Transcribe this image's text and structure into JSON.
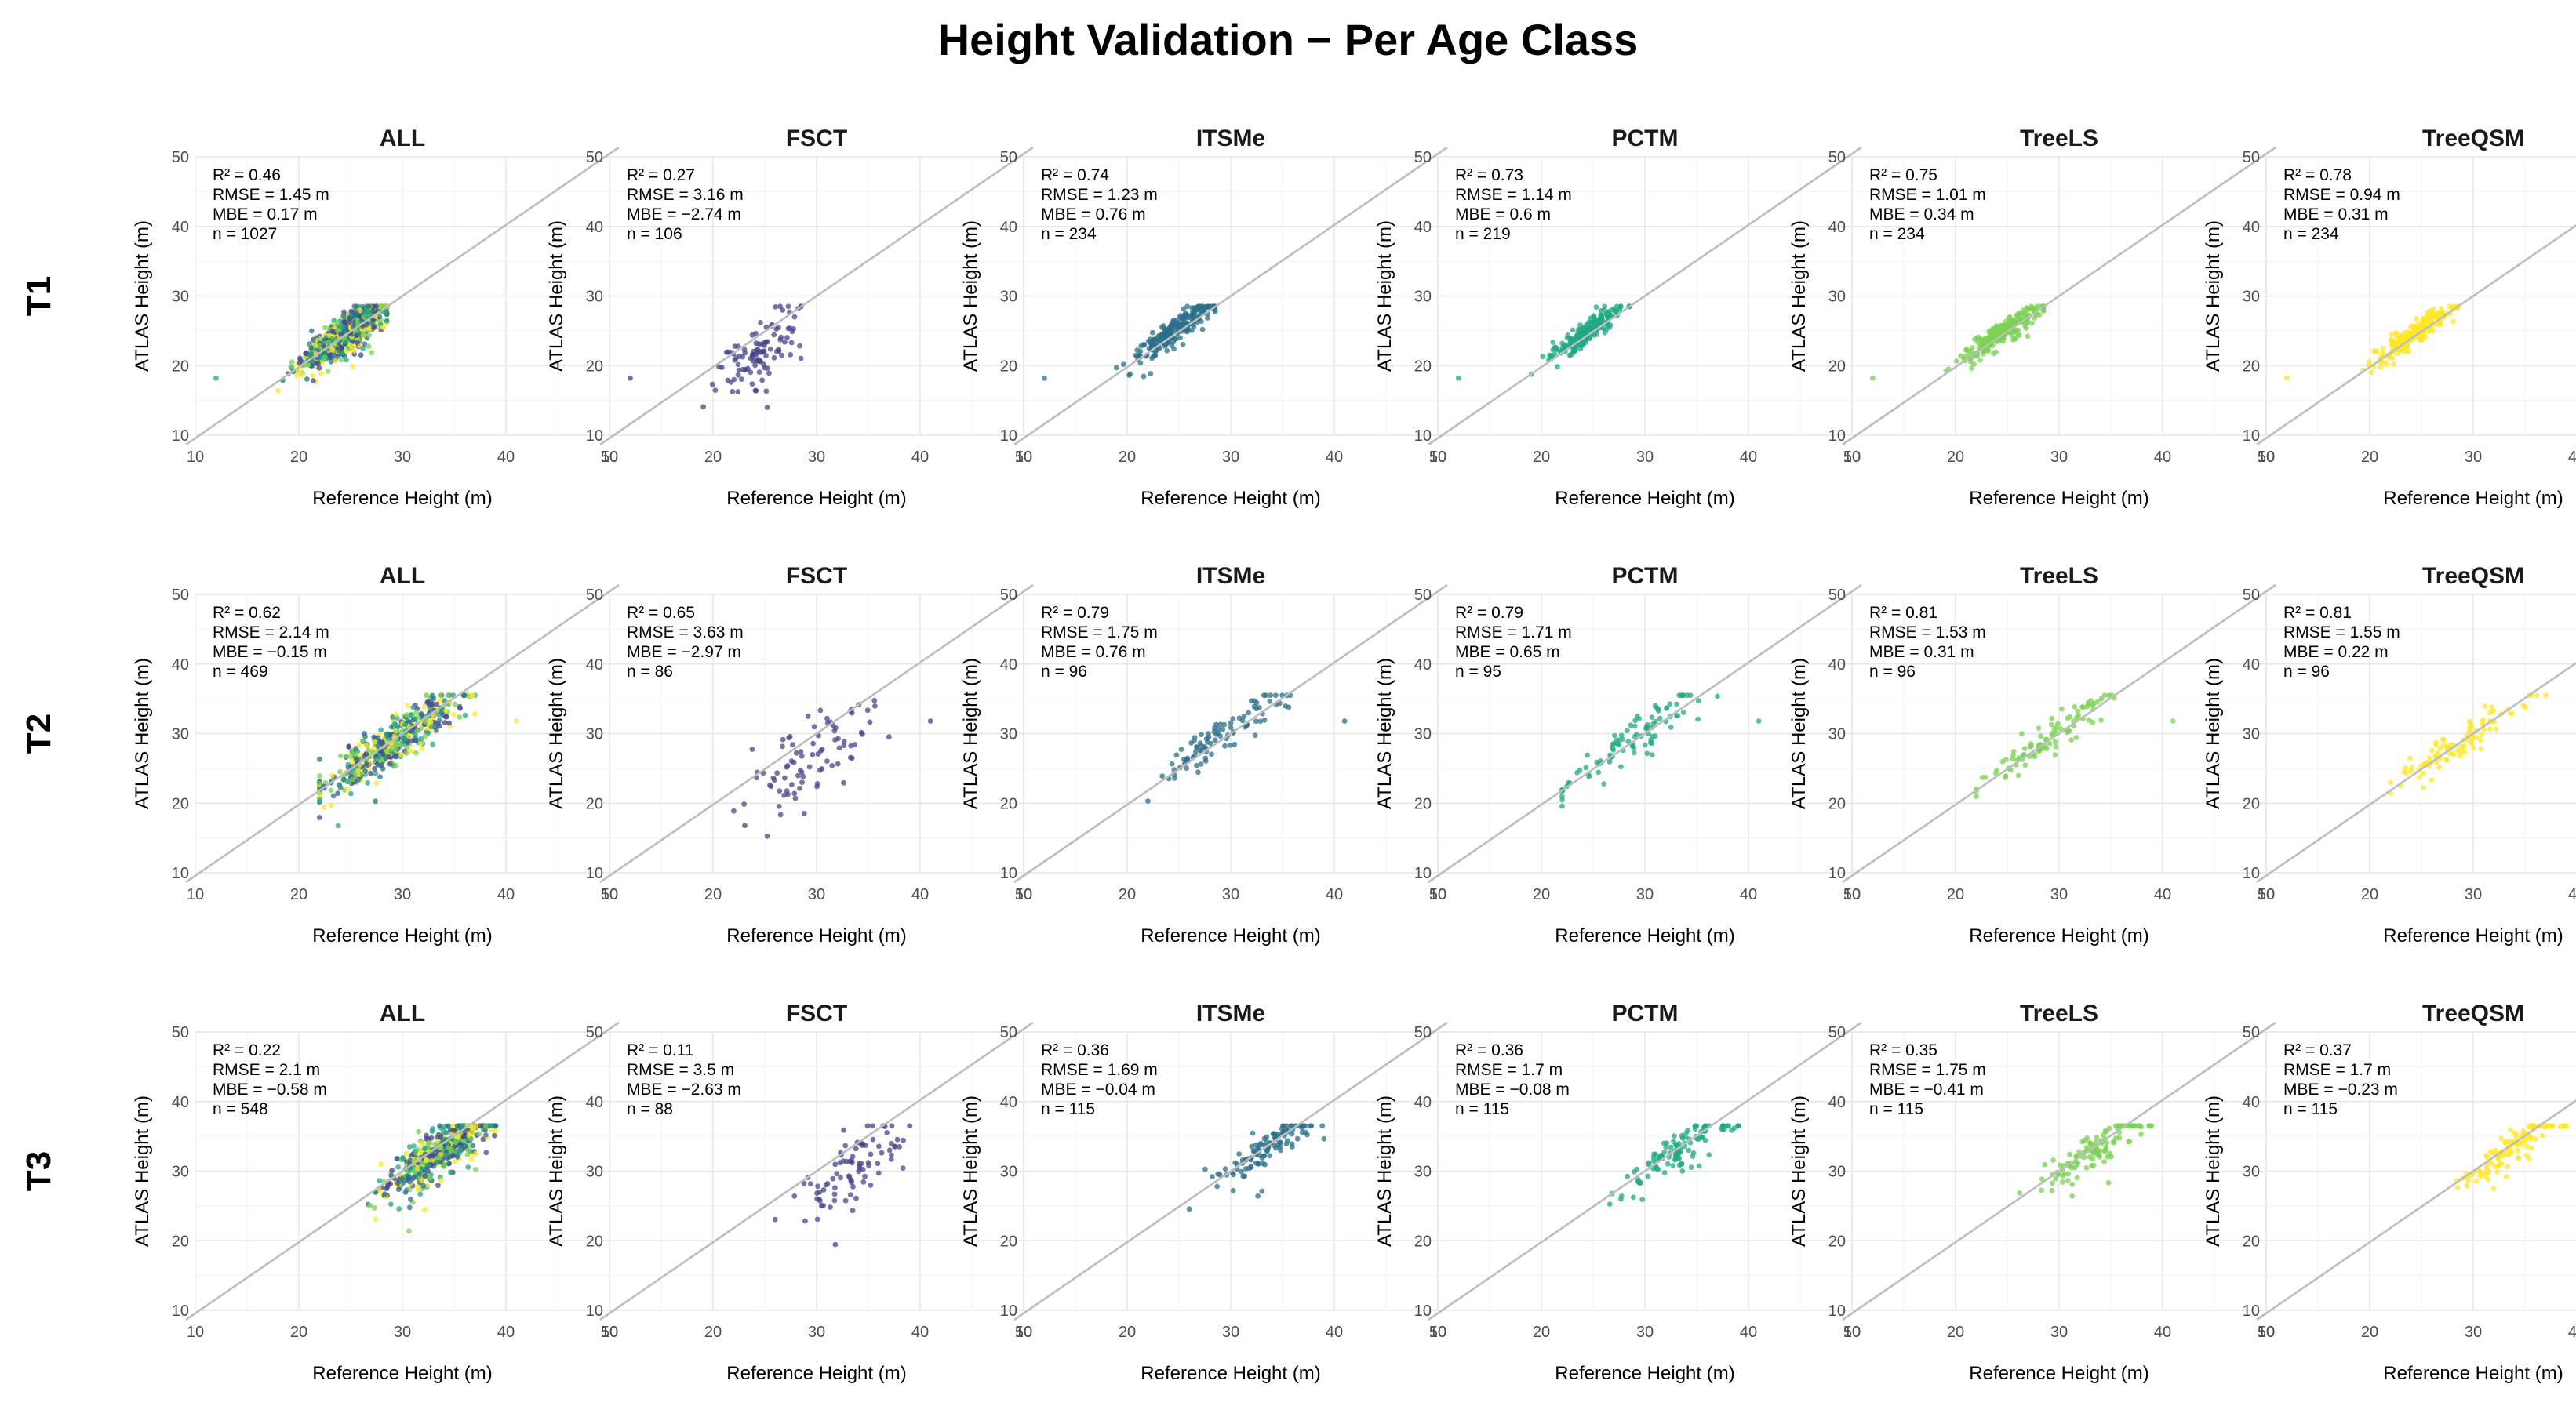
{
  "figure": {
    "title": "Height Validation − Per Age Class",
    "row_labels": [
      "T1",
      "T2",
      "T3"
    ],
    "xlabel": "Reference Height (m)",
    "ylabel": "ATLAS Height (m)",
    "xlim": [
      10,
      50
    ],
    "ylim": [
      10,
      50
    ],
    "ticks": [
      10,
      20,
      30,
      40,
      50
    ],
    "grid": true,
    "reference_line": "1:1",
    "line_color": "#bdbdbd",
    "grid_color": "#ececec"
  },
  "method_colors": {
    "FSCT": "#46468c",
    "ITSMe": "#2c6f8a",
    "PCTM": "#22a884",
    "TreeLS": "#7ad151",
    "TreeQSM": "#fde725"
  },
  "stat_labels": {
    "r2": "R² = ",
    "rmse": "RMSE = ",
    "mbe": "MBE = ",
    "n": "n = "
  },
  "chart_data": [
    {
      "type": "scatter",
      "row": "T1",
      "method": "ALL",
      "stats": {
        "r2": "0.46",
        "rmse": "1.45 m",
        "mbe": "0.17 m",
        "n": "1027"
      }
    },
    {
      "type": "scatter",
      "row": "T1",
      "method": "FSCT",
      "stats": {
        "r2": "0.27",
        "rmse": "3.16 m",
        "mbe": "−2.74 m",
        "n": "106"
      }
    },
    {
      "type": "scatter",
      "row": "T1",
      "method": "ITSMe",
      "stats": {
        "r2": "0.74",
        "rmse": "1.23 m",
        "mbe": "0.76 m",
        "n": "234"
      }
    },
    {
      "type": "scatter",
      "row": "T1",
      "method": "PCTM",
      "stats": {
        "r2": "0.73",
        "rmse": "1.14 m",
        "mbe": "0.6 m",
        "n": "219"
      }
    },
    {
      "type": "scatter",
      "row": "T1",
      "method": "TreeLS",
      "stats": {
        "r2": "0.75",
        "rmse": "1.01 m",
        "mbe": "0.34 m",
        "n": "234"
      }
    },
    {
      "type": "scatter",
      "row": "T1",
      "method": "TreeQSM",
      "stats": {
        "r2": "0.78",
        "rmse": "0.94 m",
        "mbe": "0.31 m",
        "n": "234"
      }
    },
    {
      "type": "scatter",
      "row": "T2",
      "method": "ALL",
      "stats": {
        "r2": "0.62",
        "rmse": "2.14 m",
        "mbe": "−0.15 m",
        "n": "469"
      }
    },
    {
      "type": "scatter",
      "row": "T2",
      "method": "FSCT",
      "stats": {
        "r2": "0.65",
        "rmse": "3.63 m",
        "mbe": "−2.97 m",
        "n": "86"
      }
    },
    {
      "type": "scatter",
      "row": "T2",
      "method": "ITSMe",
      "stats": {
        "r2": "0.79",
        "rmse": "1.75 m",
        "mbe": "0.76 m",
        "n": "96"
      }
    },
    {
      "type": "scatter",
      "row": "T2",
      "method": "PCTM",
      "stats": {
        "r2": "0.79",
        "rmse": "1.71 m",
        "mbe": "0.65 m",
        "n": "95"
      }
    },
    {
      "type": "scatter",
      "row": "T2",
      "method": "TreeLS",
      "stats": {
        "r2": "0.81",
        "rmse": "1.53 m",
        "mbe": "0.31 m",
        "n": "96"
      }
    },
    {
      "type": "scatter",
      "row": "T2",
      "method": "TreeQSM",
      "stats": {
        "r2": "0.81",
        "rmse": "1.55 m",
        "mbe": "0.22 m",
        "n": "96"
      }
    },
    {
      "type": "scatter",
      "row": "T3",
      "method": "ALL",
      "stats": {
        "r2": "0.22",
        "rmse": "2.1 m",
        "mbe": "−0.58 m",
        "n": "548"
      }
    },
    {
      "type": "scatter",
      "row": "T3",
      "method": "FSCT",
      "stats": {
        "r2": "0.11",
        "rmse": "3.5 m",
        "mbe": "−2.63 m",
        "n": "88"
      }
    },
    {
      "type": "scatter",
      "row": "T3",
      "method": "ITSMe",
      "stats": {
        "r2": "0.36",
        "rmse": "1.69 m",
        "mbe": "−0.04 m",
        "n": "115"
      }
    },
    {
      "type": "scatter",
      "row": "T3",
      "method": "PCTM",
      "stats": {
        "r2": "0.36",
        "rmse": "1.7 m",
        "mbe": "−0.08 m",
        "n": "115"
      }
    },
    {
      "type": "scatter",
      "row": "T3",
      "method": "TreeLS",
      "stats": {
        "r2": "0.35",
        "rmse": "1.75 m",
        "mbe": "−0.41 m",
        "n": "115"
      }
    },
    {
      "type": "scatter",
      "row": "T3",
      "method": "TreeQSM",
      "stats": {
        "r2": "0.37",
        "rmse": "1.7 m",
        "mbe": "−0.23 m",
        "n": "115"
      }
    }
  ]
}
